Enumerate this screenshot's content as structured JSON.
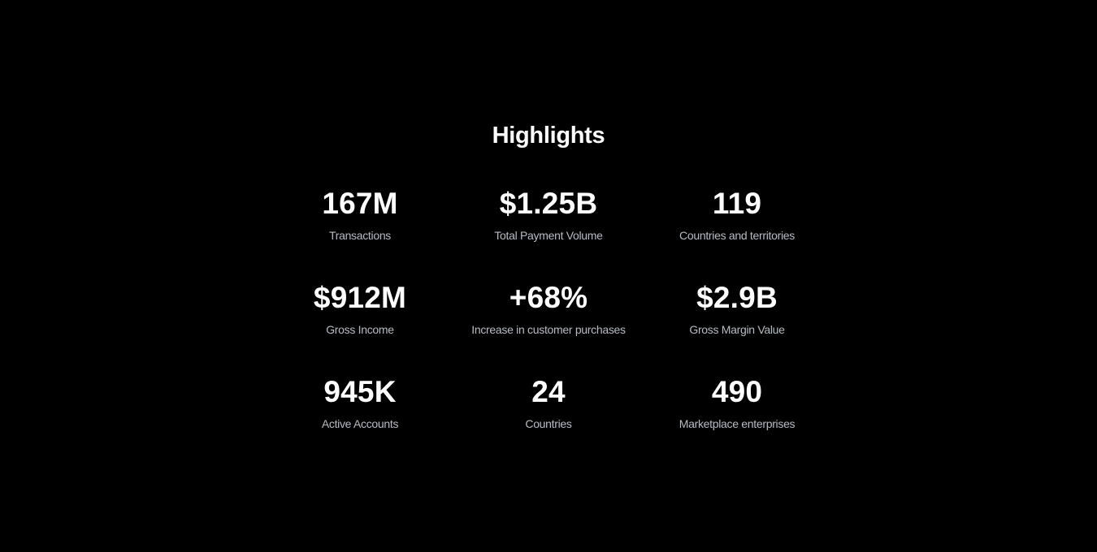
{
  "highlights": {
    "title": "Highlights",
    "stats": [
      {
        "value": "167M",
        "label": "Transactions"
      },
      {
        "value": "$1.25B",
        "label": "Total Payment Volume"
      },
      {
        "value": "119",
        "label": "Countries and territories"
      },
      {
        "value": "$912M",
        "label": "Gross Income"
      },
      {
        "value": "+68%",
        "label": "Increase in customer purchases"
      },
      {
        "value": "$2.9B",
        "label": "Gross Margin Value"
      },
      {
        "value": "945K",
        "label": "Active Accounts"
      },
      {
        "value": "24",
        "label": "Countries"
      },
      {
        "value": "490",
        "label": "Marketplace enterprises"
      }
    ]
  },
  "colors": {
    "background": "#000000",
    "value_text": "#ffffff",
    "label_text": "#b7bcc4"
  }
}
